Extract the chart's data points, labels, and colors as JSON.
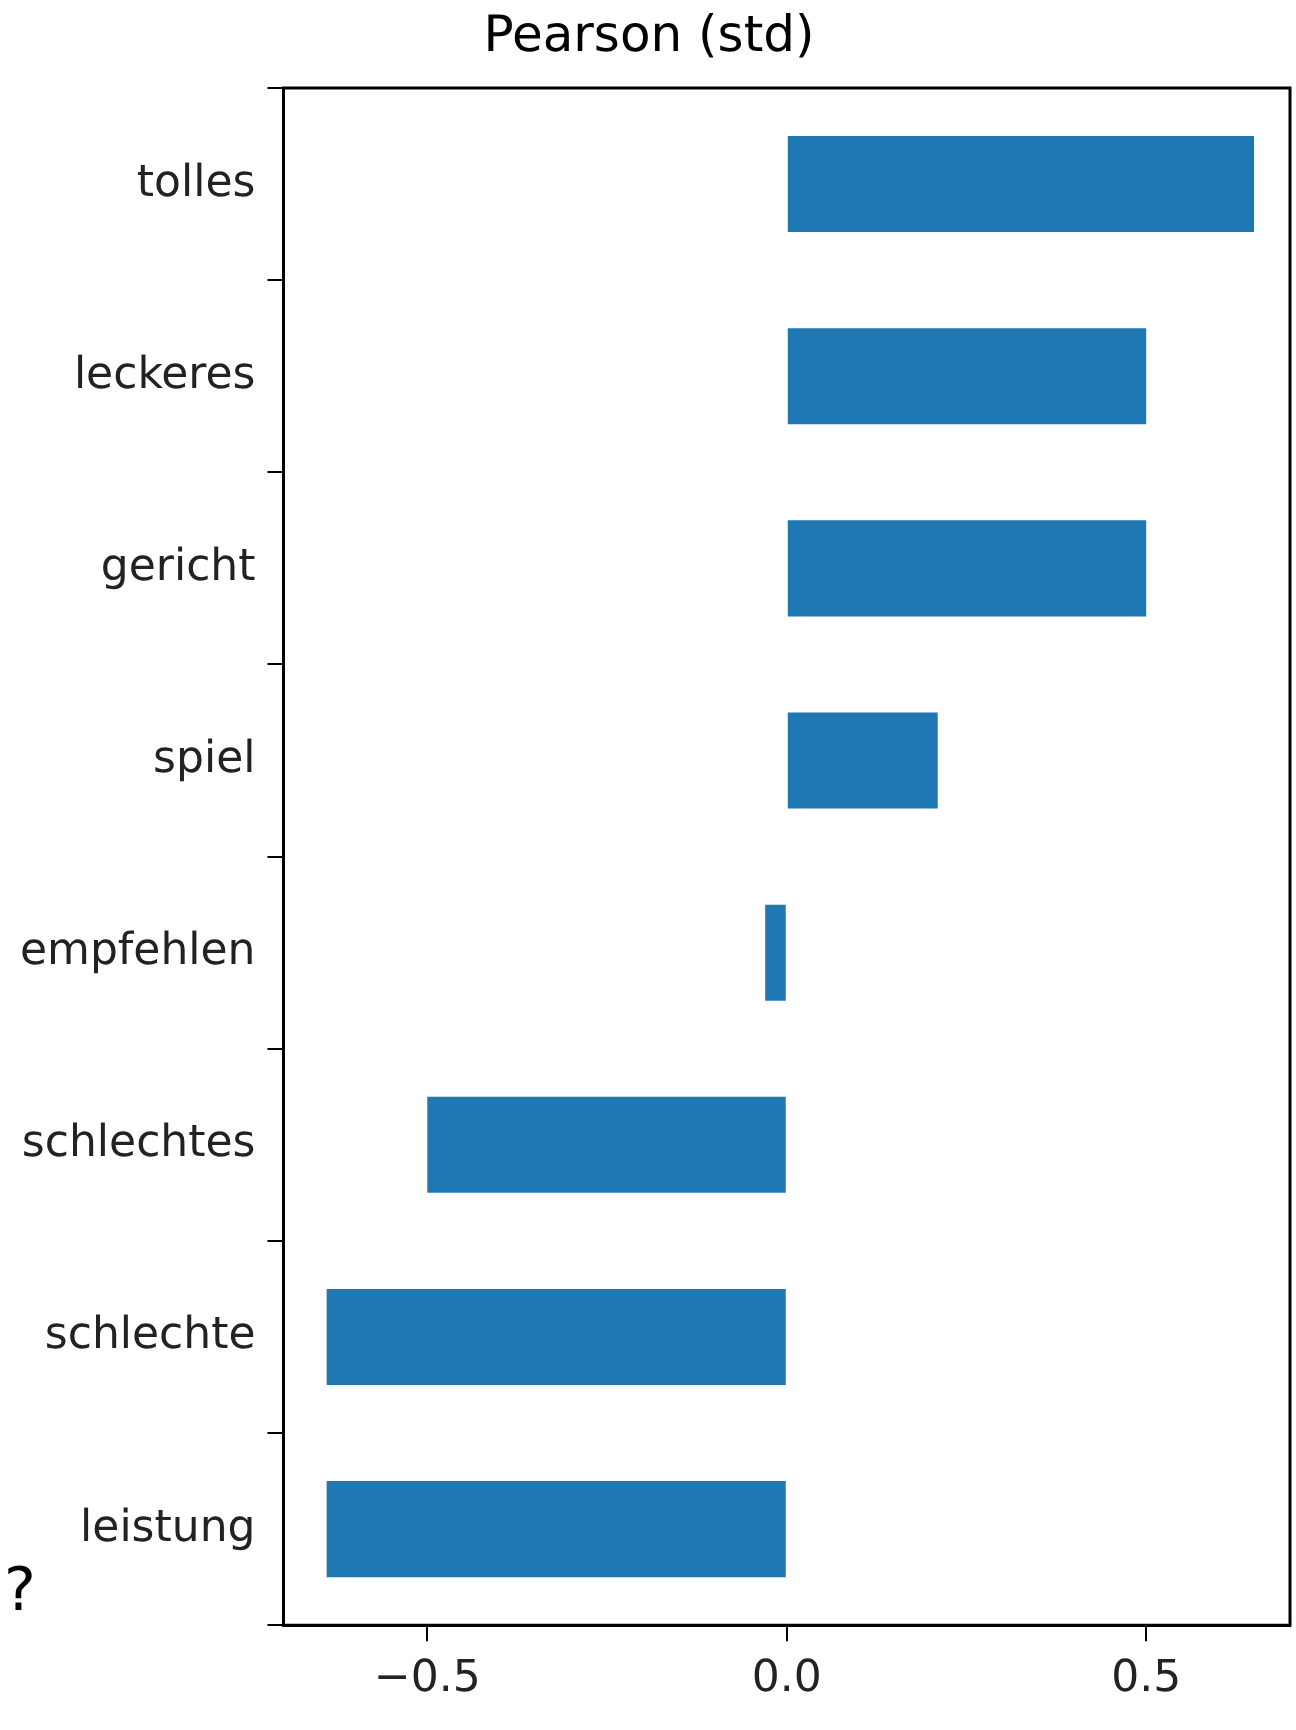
{
  "chart_data": {
    "type": "bar",
    "orientation": "horizontal",
    "title": "Pearson (std)",
    "categories": [
      "tolles",
      "leckeres",
      "gericht",
      "spiel",
      "empfehlen",
      "schlechtes",
      "schlechte",
      "leistung"
    ],
    "values": [
      0.65,
      0.5,
      0.5,
      0.21,
      -0.03,
      -0.5,
      -0.64,
      -0.64
    ],
    "color": "#1f77b4",
    "xlim": [
      -0.7,
      0.7
    ],
    "xticks": [
      {
        "value": -0.5,
        "label": "−0.5"
      },
      {
        "value": 0,
        "label": "0.0"
      },
      {
        "value": 0.5,
        "label": "0.5"
      }
    ],
    "grid": false,
    "annotations": [
      "?"
    ]
  }
}
